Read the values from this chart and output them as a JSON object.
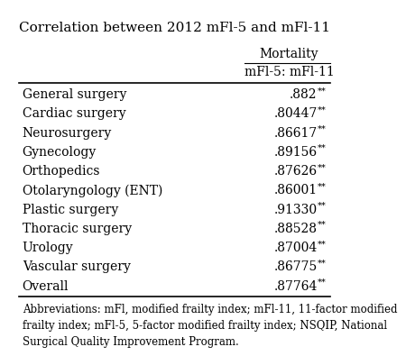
{
  "title": "Correlation between 2012 mFl-5 and mFl-11",
  "col_header1": "Mortality",
  "col_header2": "mFl-5: mFl-11",
  "rows": [
    [
      "General surgery",
      ".882**"
    ],
    [
      "Cardiac surgery",
      ".80447**"
    ],
    [
      "Neurosurgery",
      ".86617**"
    ],
    [
      "Gynecology",
      ".89156**"
    ],
    [
      "Orthopedics",
      ".87626**"
    ],
    [
      "Otolaryngology (ENT)",
      ".86001**"
    ],
    [
      "Plastic surgery",
      ".91330**"
    ],
    [
      "Thoracic surgery",
      ".88528**"
    ],
    [
      "Urology",
      ".87004**"
    ],
    [
      "Vascular surgery",
      ".86775**"
    ],
    [
      "Overall",
      ".87764**"
    ]
  ],
  "footnote": "Abbreviations: mFl, modified frailty index; mFl-11, 11-factor modified\nfrailty index; mFl-5, 5-factor modified frailty index; NSQIP, National\nSurgical Quality Improvement Program.",
  "bg_color": "#ffffff",
  "text_color": "#000000",
  "title_fontsize": 11,
  "header_fontsize": 10,
  "body_fontsize": 10,
  "footnote_fontsize": 8.5
}
